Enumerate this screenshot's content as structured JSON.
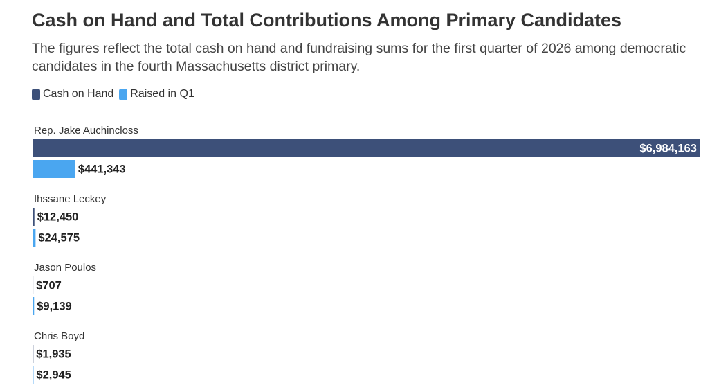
{
  "chart_data": {
    "type": "bar",
    "orientation": "horizontal",
    "title": "Cash on Hand and Total Contributions Among Primary Candidates",
    "subtitle": "The figures reflect the total cash on hand and fundraising sums for the first quarter of 2026 among democratic candidates in the fourth Massachusetts district primary.",
    "categories": [
      "Rep. Jake Auchincloss",
      "Ihssane Leckey",
      "Jason Poulos",
      "Chris Boyd"
    ],
    "series": [
      {
        "name": "Cash on Hand",
        "color": "#3d5079",
        "values": [
          6984163,
          12450,
          707,
          1935
        ],
        "value_labels": [
          "$6,984,163",
          "$12,450",
          "$707",
          "$1,935"
        ]
      },
      {
        "name": "Raised in Q1",
        "color": "#4aa6f0",
        "values": [
          441343,
          24575,
          9139,
          2945
        ],
        "value_labels": [
          "$441,343",
          "$24,575",
          "$9,139",
          "$2,945"
        ]
      }
    ]
  }
}
